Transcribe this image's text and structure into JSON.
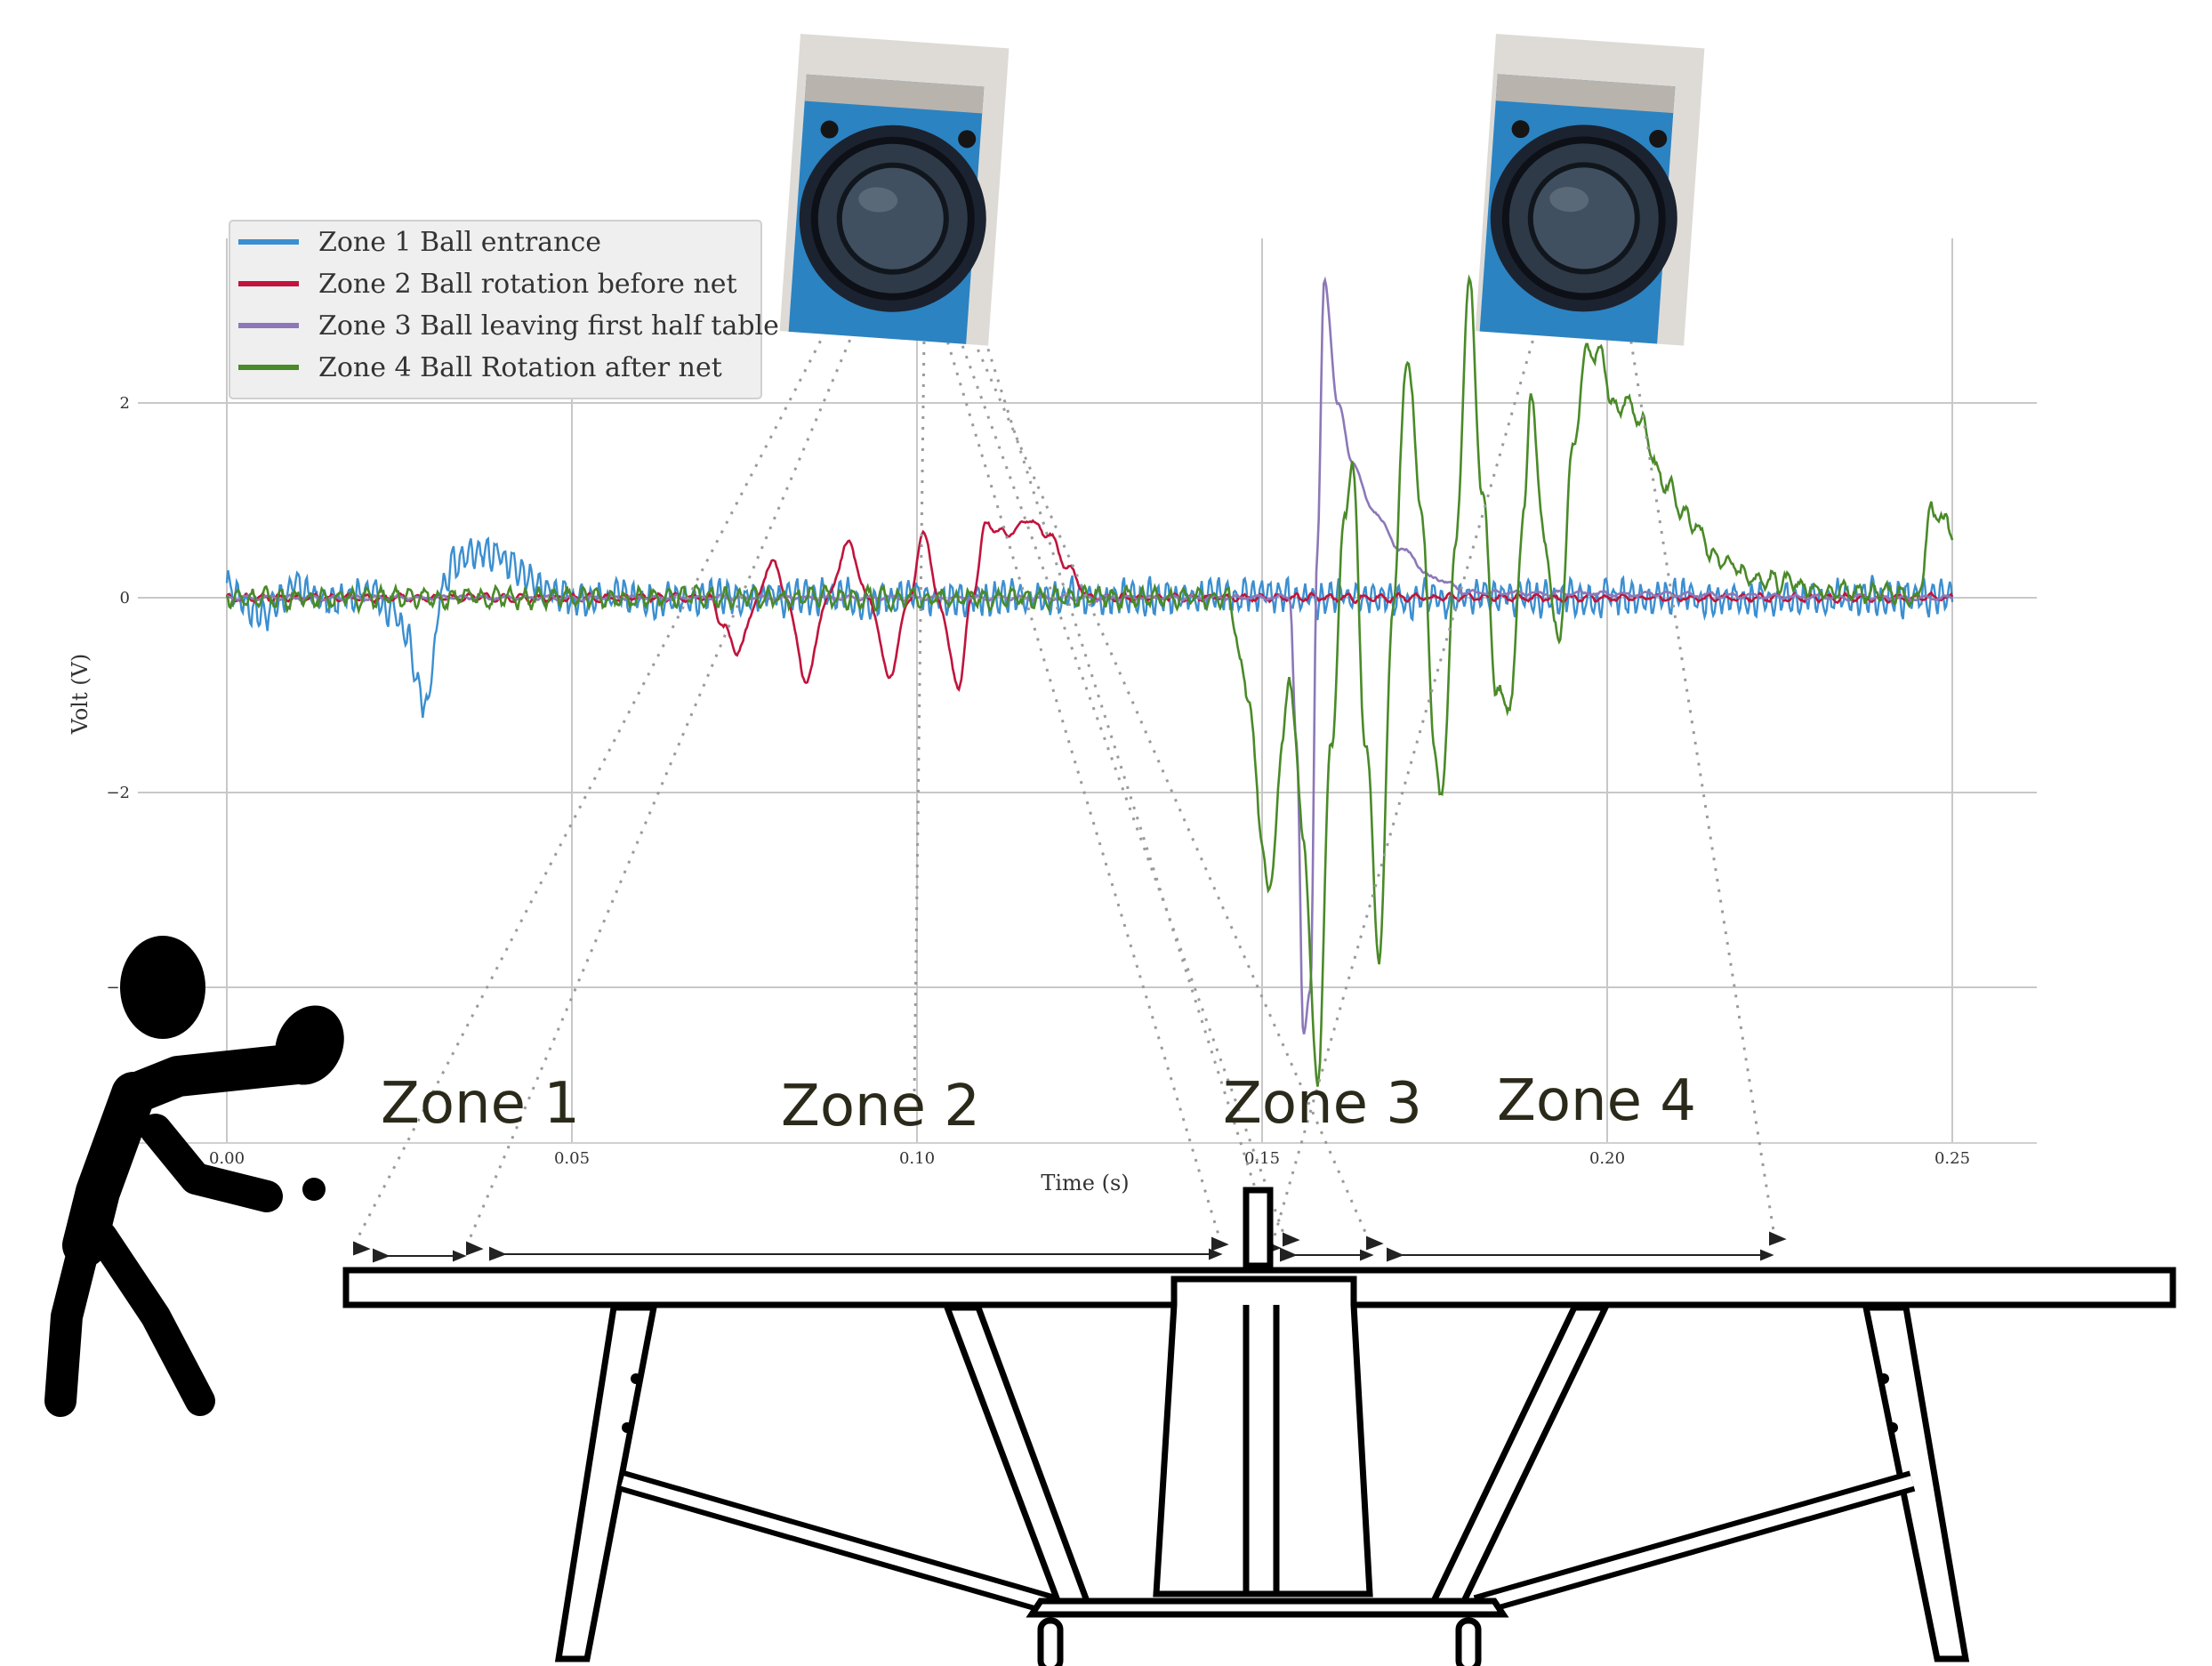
{
  "chart_data": {
    "type": "line",
    "xlabel": "Time (s)",
    "ylabel": "Volt (V)",
    "xlim": [
      0,
      0.25
    ],
    "ylim": [
      -5.6,
      3.7
    ],
    "xticks": [
      "0.00",
      "0.05",
      "0.10",
      "0.15",
      "0.20",
      "0.25"
    ],
    "yticks": [
      "2",
      "0",
      "−2",
      "−4"
    ],
    "ytick_values": [
      2,
      0,
      -2,
      -4
    ],
    "grid": true,
    "legend_position": "top-left",
    "series": [
      {
        "name": "Zone 1 Ball entrance",
        "color": "#3b8fd0",
        "description_points": [
          [
            0,
            0.1
          ],
          [
            0.005,
            -0.15
          ],
          [
            0.01,
            0.1
          ],
          [
            0.015,
            -0.05
          ],
          [
            0.02,
            0.1
          ],
          [
            0.024,
            -0.1
          ],
          [
            0.026,
            -0.4
          ],
          [
            0.028,
            -1.0
          ],
          [
            0.029,
            -1.15
          ],
          [
            0.03,
            -0.6
          ],
          [
            0.031,
            0.1
          ],
          [
            0.033,
            0.35
          ],
          [
            0.036,
            0.5
          ],
          [
            0.039,
            0.45
          ],
          [
            0.042,
            0.3
          ],
          [
            0.046,
            0.1
          ],
          [
            0.05,
            0.0
          ],
          [
            0.25,
            0.0
          ]
        ]
      },
      {
        "name": "Zone 2 Ball rotation before net",
        "color": "#c0143c",
        "description_points": [
          [
            0,
            0
          ],
          [
            0.07,
            0
          ],
          [
            0.072,
            -0.3
          ],
          [
            0.074,
            -0.55
          ],
          [
            0.077,
            0.0
          ],
          [
            0.079,
            0.4
          ],
          [
            0.081,
            0.0
          ],
          [
            0.084,
            -0.85
          ],
          [
            0.087,
            0.0
          ],
          [
            0.09,
            0.55
          ],
          [
            0.093,
            0.0
          ],
          [
            0.096,
            -0.8
          ],
          [
            0.099,
            0.0
          ],
          [
            0.101,
            0.7
          ],
          [
            0.103,
            0.0
          ],
          [
            0.106,
            -0.9
          ],
          [
            0.108,
            0.0
          ],
          [
            0.11,
            0.75
          ],
          [
            0.113,
            0.65
          ],
          [
            0.116,
            0.8
          ],
          [
            0.119,
            0.65
          ],
          [
            0.122,
            0.3
          ],
          [
            0.125,
            0.0
          ],
          [
            0.25,
            0.0
          ]
        ]
      },
      {
        "name": "Zone 3 Ball leaving first half table",
        "color": "#8c78b8",
        "description_points": [
          [
            0,
            0
          ],
          [
            0.154,
            0
          ],
          [
            0.155,
            -1.5
          ],
          [
            0.156,
            -4.5
          ],
          [
            0.157,
            -4.0
          ],
          [
            0.158,
            0.5
          ],
          [
            0.159,
            3.25
          ],
          [
            0.161,
            2.0
          ],
          [
            0.163,
            1.4
          ],
          [
            0.166,
            0.9
          ],
          [
            0.17,
            0.5
          ],
          [
            0.175,
            0.2
          ],
          [
            0.18,
            0.05
          ],
          [
            0.25,
            0.0
          ]
        ]
      },
      {
        "name": "Zone 4 Ball Rotation after net",
        "color": "#4a8a28",
        "description_points": [
          [
            0,
            0
          ],
          [
            0.145,
            0
          ],
          [
            0.148,
            -1.0
          ],
          [
            0.15,
            -2.5
          ],
          [
            0.151,
            -3.1
          ],
          [
            0.153,
            -1.5
          ],
          [
            0.154,
            -0.8
          ],
          [
            0.156,
            -2.5
          ],
          [
            0.158,
            -5.0
          ],
          [
            0.16,
            -1.5
          ],
          [
            0.162,
            0.8
          ],
          [
            0.163,
            1.4
          ],
          [
            0.165,
            -1.5
          ],
          [
            0.167,
            -3.65
          ],
          [
            0.169,
            0.0
          ],
          [
            0.171,
            2.5
          ],
          [
            0.173,
            1.0
          ],
          [
            0.175,
            -1.5
          ],
          [
            0.176,
            -2.1
          ],
          [
            0.178,
            0.5
          ],
          [
            0.18,
            3.2
          ],
          [
            0.182,
            1.0
          ],
          [
            0.184,
            -1.0
          ],
          [
            0.186,
            -1.1
          ],
          [
            0.188,
            1.0
          ],
          [
            0.189,
            2.1
          ],
          [
            0.191,
            0.5
          ],
          [
            0.193,
            -0.45
          ],
          [
            0.195,
            1.5
          ],
          [
            0.197,
            2.5
          ],
          [
            0.199,
            2.5
          ],
          [
            0.201,
            1.95
          ],
          [
            0.203,
            2.0
          ],
          [
            0.205,
            1.8
          ],
          [
            0.208,
            1.2
          ],
          [
            0.212,
            0.8
          ],
          [
            0.216,
            0.4
          ],
          [
            0.222,
            0.2
          ],
          [
            0.23,
            0.1
          ],
          [
            0.24,
            0.05
          ],
          [
            0.245,
            0.0
          ],
          [
            0.247,
            0.9
          ],
          [
            0.249,
            0.75
          ],
          [
            0.25,
            0.7
          ]
        ]
      }
    ]
  },
  "diagram": {
    "zone_labels": [
      "Zone 1",
      "Zone 2",
      "Zone 3",
      "Zone 4"
    ]
  },
  "icons": {
    "player": "table-tennis-player-icon",
    "table": "table-tennis-table-icon",
    "camera": "high-speed-camera-icon"
  }
}
